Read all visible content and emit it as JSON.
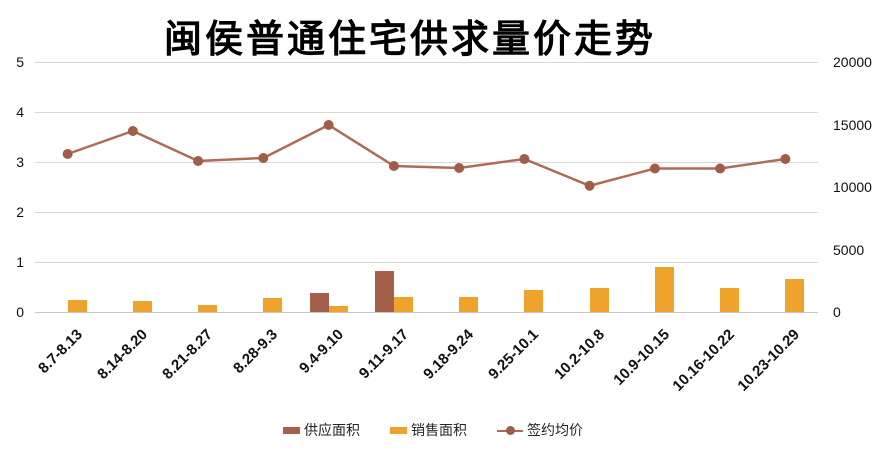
{
  "chart_data": {
    "type": "bar",
    "subtype": "combo-bar-line-dual-axis",
    "title": "闽侯普通住宅供求量价走势",
    "categories": [
      "8.7-8.13",
      "8.14-8.20",
      "8.21-8.27",
      "8.28-9.3",
      "9.4-9.10",
      "9.11-9.17",
      "9.18-9.24",
      "9.25-10.1",
      "10.2-10.8",
      "10.9-10.15",
      "10.16-10.22",
      "10.23-10.29"
    ],
    "series": [
      {
        "name": "供应面积",
        "kind": "bar",
        "axis": "left",
        "color": "#A4604B",
        "values": [
          0,
          0,
          0,
          0,
          0.39,
          0.82,
          0,
          0,
          0,
          0,
          0,
          0
        ]
      },
      {
        "name": "销售面积",
        "kind": "bar",
        "axis": "left",
        "color": "#EFA32C",
        "values": [
          0.25,
          0.22,
          0.15,
          0.28,
          0.13,
          0.3,
          0.3,
          0.45,
          0.49,
          0.9,
          0.48,
          0.67
        ]
      },
      {
        "name": "签约均价",
        "kind": "line",
        "axis": "right",
        "color": "#AE6C56",
        "marker_color": "#A05D47",
        "values": [
          12640,
          14480,
          12080,
          12320,
          14960,
          11680,
          11520,
          12240,
          10100,
          11480,
          11480,
          12240
        ]
      }
    ],
    "left_axis": {
      "min": 0,
      "max": 5,
      "ticks": [
        "0",
        "1",
        "2",
        "3",
        "4",
        "5"
      ]
    },
    "right_axis": {
      "min": 0,
      "max": 20000,
      "ticks": [
        "0",
        "5000",
        "10000",
        "15000",
        "20000"
      ]
    },
    "grid": true,
    "legend_position": "bottom",
    "colors": {
      "grid": "#d9d9d9",
      "axis_line": "#c6c6c6",
      "text": "#111111"
    }
  }
}
